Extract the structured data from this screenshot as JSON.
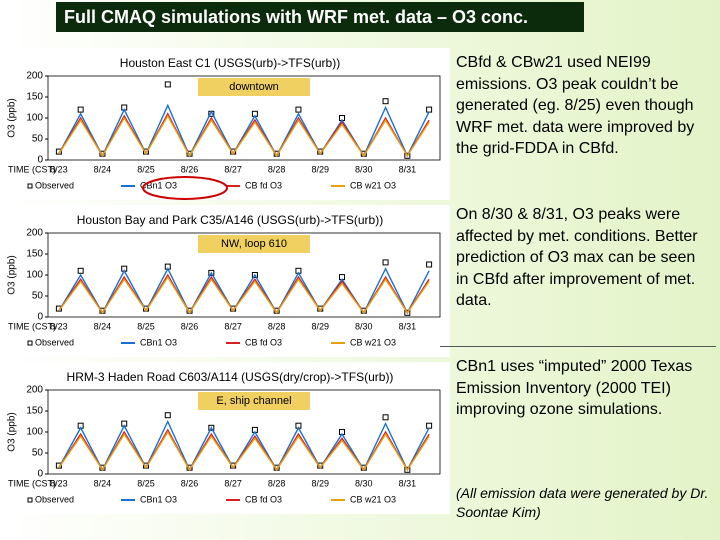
{
  "title": "Full CMAQ simulations with WRF met. data – O3 conc.",
  "chart_data": [
    {
      "type": "line",
      "title": "Houston East C1 (USGS(urb)->TFS(urb))",
      "annotation": "downtown",
      "ylabel": "O3 (ppb)",
      "xlabel": "TIME (CST)",
      "categories": [
        "8/23",
        null,
        "8/24",
        null,
        "8/25",
        null,
        "8/26",
        null,
        "8/27",
        null,
        "8/28",
        null,
        "8/29",
        null,
        "8/30",
        null,
        "8/31",
        null
      ],
      "ylim": [
        0,
        200
      ],
      "yticks": [
        0,
        50,
        100,
        150,
        200
      ],
      "series": [
        {
          "name": "Observed",
          "color": "#000000",
          "values": [
            20,
            120,
            15,
            125,
            20,
            180,
            15,
            110,
            20,
            110,
            15,
            120,
            20,
            100,
            15,
            140,
            10,
            120
          ]
        },
        {
          "name": "CBn1 O3",
          "color": "#1a6fd6",
          "values": [
            15,
            110,
            10,
            120,
            15,
            130,
            10,
            115,
            15,
            105,
            10,
            110,
            15,
            95,
            10,
            125,
            10,
            115
          ]
        },
        {
          "name": "CB fd O3",
          "color": "#d62020",
          "values": [
            15,
            100,
            10,
            105,
            15,
            110,
            10,
            100,
            15,
            95,
            10,
            100,
            15,
            90,
            10,
            100,
            10,
            95
          ]
        },
        {
          "name": "CB w21 O3",
          "color": "#e8a010",
          "values": [
            15,
            95,
            10,
            100,
            15,
            105,
            10,
            95,
            15,
            90,
            10,
            95,
            15,
            85,
            10,
            95,
            10,
            90
          ]
        }
      ]
    },
    {
      "type": "line",
      "title": "Houston Bay and Park C35/A146 (USGS(urb)->TFS(urb))",
      "annotation": "NW, loop 610",
      "ylabel": "O3 (ppb)",
      "xlabel": "TIME (CST)",
      "categories": [
        "8/23",
        null,
        "8/24",
        null,
        "8/25",
        null,
        "8/26",
        null,
        "8/27",
        null,
        "8/28",
        null,
        "8/29",
        null,
        "8/30",
        null,
        "8/31",
        null
      ],
      "ylim": [
        0,
        200
      ],
      "yticks": [
        0,
        50,
        100,
        150,
        200
      ],
      "series": [
        {
          "name": "Observed",
          "color": "#000000",
          "values": [
            20,
            110,
            15,
            115,
            20,
            120,
            15,
            105,
            20,
            100,
            15,
            110,
            20,
            95,
            15,
            130,
            10,
            125
          ]
        },
        {
          "name": "CBn1 O3",
          "color": "#1a6fd6",
          "values": [
            15,
            100,
            10,
            110,
            15,
            115,
            10,
            105,
            15,
            100,
            10,
            105,
            15,
            90,
            10,
            115,
            10,
            110
          ]
        },
        {
          "name": "CB fd O3",
          "color": "#d62020",
          "values": [
            15,
            90,
            10,
            95,
            15,
            100,
            10,
            95,
            15,
            90,
            10,
            95,
            15,
            85,
            10,
            95,
            10,
            90
          ]
        },
        {
          "name": "CB w21 O3",
          "color": "#e8a010",
          "values": [
            15,
            85,
            10,
            90,
            15,
            95,
            10,
            90,
            15,
            85,
            10,
            90,
            15,
            80,
            10,
            90,
            10,
            85
          ]
        }
      ]
    },
    {
      "type": "line",
      "title": "HRM-3 Haden Road C603/A114 (USGS(dry/crop)->TFS(urb))",
      "annotation": "E, ship channel",
      "ylabel": "O3 (ppb)",
      "xlabel": "TIME (CST)",
      "categories": [
        "8/23",
        null,
        "8/24",
        null,
        "8/25",
        null,
        "8/26",
        null,
        "8/27",
        null,
        "8/28",
        null,
        "8/29",
        null,
        "8/30",
        null,
        "8/31",
        null
      ],
      "ylim": [
        0,
        200
      ],
      "yticks": [
        0,
        50,
        100,
        150,
        200
      ],
      "series": [
        {
          "name": "Observed",
          "color": "#000000",
          "values": [
            20,
            115,
            15,
            120,
            20,
            140,
            15,
            110,
            20,
            105,
            15,
            115,
            20,
            100,
            15,
            135,
            10,
            115
          ]
        },
        {
          "name": "CBn1 O3",
          "color": "#1a6fd6",
          "values": [
            15,
            110,
            10,
            115,
            15,
            125,
            10,
            110,
            15,
            100,
            10,
            110,
            15,
            95,
            10,
            120,
            10,
            110
          ]
        },
        {
          "name": "CB fd O3",
          "color": "#d62020",
          "values": [
            15,
            95,
            10,
            100,
            15,
            105,
            10,
            95,
            15,
            90,
            10,
            95,
            15,
            85,
            10,
            100,
            10,
            95
          ]
        },
        {
          "name": "CB w21 O3",
          "color": "#e8a010",
          "values": [
            15,
            90,
            10,
            95,
            15,
            100,
            10,
            90,
            15,
            85,
            10,
            90,
            15,
            80,
            10,
            95,
            10,
            90
          ]
        }
      ]
    }
  ],
  "notes": [
    "CBfd & CBw21 used NEI99 emissions. O3 peak couldn’t be generated (eg. 8/25) even though WRF met. data were improved by the grid-FDDA in CBfd.",
    "On 8/30 & 8/31, O3 peaks were affected by met. conditions. Better prediction of O3 max can be seen in CBfd after improvement of met. data.",
    "CBn1 uses “imputed” 2000 Texas Emission Inventory (2000 TEI) improving ozone simulations.",
    "(All emission data were generated by Dr. Soontae Kim)"
  ]
}
